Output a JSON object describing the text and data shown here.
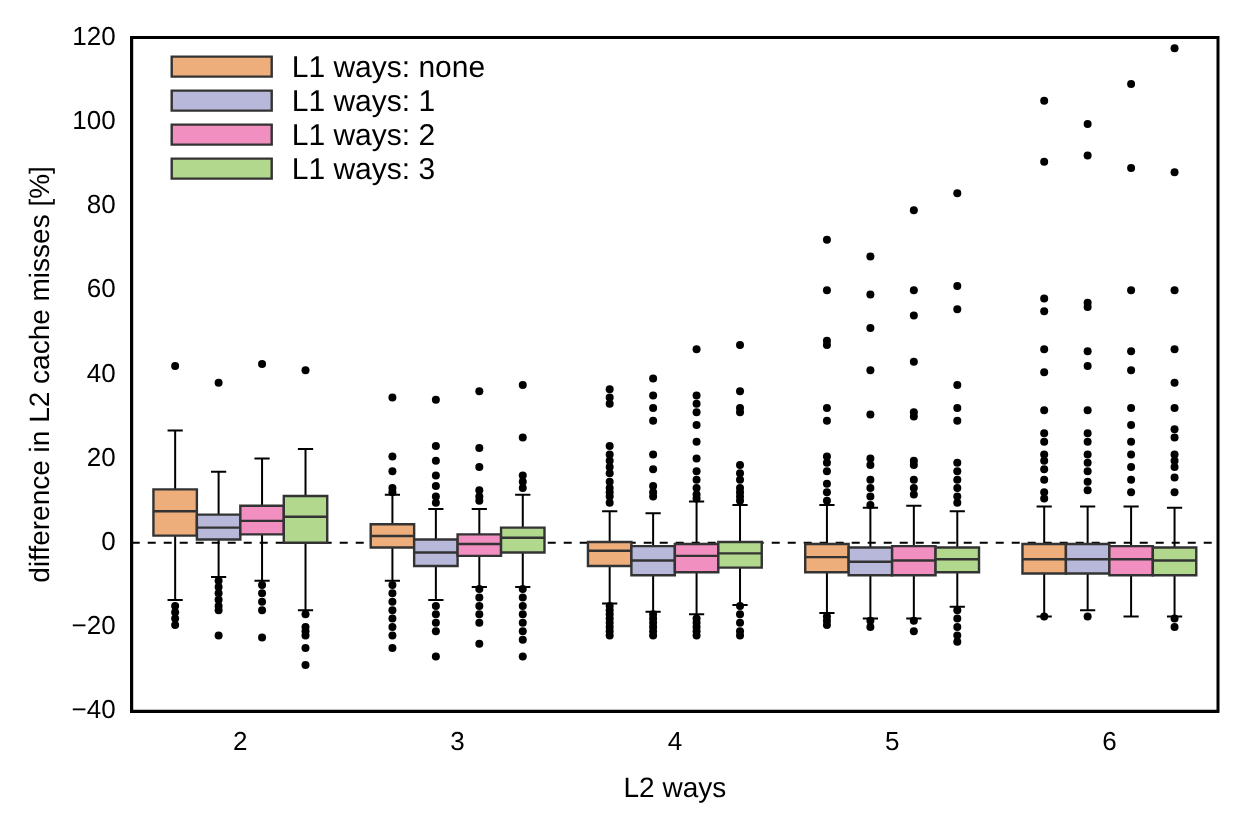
{
  "chart_data": {
    "type": "box",
    "xlabel": "L2 ways",
    "ylabel": "difference in L2 cache misses [%]",
    "categories": [
      "2",
      "3",
      "4",
      "5",
      "6"
    ],
    "ylim": [
      -40,
      120
    ],
    "yticks": [
      {
        "value": -40,
        "label": "−40"
      },
      {
        "value": -20,
        "label": "−20"
      },
      0,
      20,
      40,
      60,
      80,
      100,
      120
    ],
    "grid": false,
    "legend": "top left",
    "ref_lines": [
      {
        "axis": "y",
        "value": 0,
        "color": "#000000",
        "line_style": "dashed"
      }
    ],
    "series": [
      {
        "name": "L1 ways: none",
        "color": "#eeae7c",
        "boxes": [
          {
            "low": -13.6,
            "q1": 1.7,
            "median": 7.5,
            "q3": 12.7,
            "high": 26.7,
            "outliers": [
              42,
              -15,
              -16.5,
              -18,
              -19.5
            ]
          },
          {
            "low": -9,
            "q1": -1.1,
            "median": 1.6,
            "q3": 4.4,
            "high": 11.4,
            "outliers": [
              34.5,
              20.5,
              17,
              13,
              12,
              -10,
              -12,
              -14,
              -16,
              -18,
              -20,
              -22,
              -25
            ]
          },
          {
            "low": -14.4,
            "q1": -5.5,
            "median": -1.9,
            "q3": 0.2,
            "high": 7.5,
            "outliers": [
              36.5,
              34.5,
              33,
              23,
              21,
              19.5,
              18,
              16.5,
              14.5,
              13,
              12,
              11,
              9.5,
              -15,
              -16,
              -17,
              -18,
              -19,
              -20,
              -21,
              -22
            ]
          },
          {
            "low": -16.7,
            "q1": -7,
            "median": -3.4,
            "q3": -0.3,
            "high": 9,
            "outliers": [
              72,
              60,
              48,
              47,
              32,
              29,
              20.5,
              19,
              17,
              14,
              12,
              10,
              -17.5,
              -18.5,
              -19.5
            ]
          },
          {
            "low": -17.5,
            "q1": -7.3,
            "median": -3.9,
            "q3": -0.3,
            "high": 8.6,
            "outliers": [
              105,
              90.5,
              58,
              55,
              46,
              40.5,
              31.5,
              26,
              24,
              21,
              19.5,
              17.5,
              15,
              12,
              10.5,
              -17.5
            ]
          }
        ]
      },
      {
        "name": "L1 ways: 1",
        "color": "#b8b8da",
        "boxes": [
          {
            "low": -8.1,
            "q1": 0.8,
            "median": 3.6,
            "q3": 6.7,
            "high": 16.9,
            "outliers": [
              38,
              -9,
              -10.5,
              -12,
              -13.5,
              -15,
              -16,
              -22
            ]
          },
          {
            "low": -13.6,
            "q1": -5.5,
            "median": -2.3,
            "q3": 0.8,
            "high": 8,
            "outliers": [
              34,
              23,
              19.5,
              16,
              13.5,
              11,
              9.5,
              -15,
              -17,
              -19,
              -21,
              -27
            ]
          },
          {
            "low": -16.4,
            "q1": -7.7,
            "median": -4.2,
            "q3": -0.8,
            "high": 7,
            "outliers": [
              39,
              35,
              32,
              29,
              21,
              17.5,
              13.5,
              12,
              11,
              -17,
              -18,
              -19,
              -20,
              -21,
              -22
            ]
          },
          {
            "low": -18,
            "q1": -7.7,
            "median": -4.5,
            "q3": -1.1,
            "high": 8.3,
            "outliers": [
              68,
              59,
              51,
              41,
              30.5,
              20,
              18.5,
              15,
              13,
              11,
              9,
              -18.5,
              -20
            ]
          },
          {
            "low": -16,
            "q1": -7.3,
            "median": -3.9,
            "q3": -0.3,
            "high": 8.6,
            "outliers": [
              99.5,
              92,
              57,
              56,
              45.5,
              42,
              31.5,
              26,
              24,
              21,
              19,
              17,
              14.5,
              12.5,
              -17.5
            ]
          }
        ]
      },
      {
        "name": "L1 ways: 2",
        "color": "#f08fc0",
        "boxes": [
          {
            "low": -9,
            "q1": 2,
            "median": 5.2,
            "q3": 8.8,
            "high": 20,
            "outliers": [
              42.5,
              -10,
              -12,
              -14,
              -16,
              -22.5
            ]
          },
          {
            "low": -10.5,
            "q1": -3.1,
            "median": -0.3,
            "q3": 2,
            "high": 8,
            "outliers": [
              36,
              22.5,
              18,
              12.5,
              11,
              10,
              -11,
              -13,
              -15,
              -17,
              -19,
              -24
            ]
          },
          {
            "low": -17,
            "q1": -7,
            "median": -3.1,
            "q3": -0.3,
            "high": 9.8,
            "outliers": [
              46,
              35,
              33,
              31,
              28,
              24,
              20,
              17,
              15,
              13,
              11.5,
              10.5,
              -18,
              -19,
              -20,
              -21,
              -22
            ]
          },
          {
            "low": -18,
            "q1": -7.7,
            "median": -4.2,
            "q3": -0.8,
            "high": 8.8,
            "outliers": [
              79,
              60,
              54,
              43,
              31,
              30,
              19.5,
              18.5,
              15,
              13,
              11.5,
              -18.5,
              -21
            ]
          },
          {
            "low": -17.5,
            "q1": -7.7,
            "median": -3.9,
            "q3": -0.8,
            "high": 8.6,
            "outliers": [
              109,
              89,
              60,
              45.5,
              41,
              32,
              28,
              24,
              21,
              18,
              15,
              12
            ]
          }
        ]
      },
      {
        "name": "L1 ways: 3",
        "color": "#b2d88e",
        "boxes": [
          {
            "low": -16,
            "q1": 0,
            "median": 6.2,
            "q3": 11.1,
            "high": 22.3,
            "outliers": [
              41,
              -17,
              -20,
              -21,
              -22,
              -25,
              -29
            ]
          },
          {
            "low": -10.5,
            "q1": -2.3,
            "median": 1.2,
            "q3": 3.6,
            "high": 11.4,
            "outliers": [
              37.5,
              25,
              16,
              14.5,
              13,
              -11,
              -13,
              -15,
              -17,
              -19,
              -21,
              -23,
              -27
            ]
          },
          {
            "low": -14.8,
            "q1": -5.9,
            "median": -2.5,
            "q3": 0.2,
            "high": 9,
            "outliers": [
              47,
              36,
              32,
              31,
              18.5,
              16.5,
              15,
              13,
              12,
              11,
              10,
              -15,
              -17,
              -19,
              -21,
              -22
            ]
          },
          {
            "low": -15.2,
            "q1": -7,
            "median": -3.9,
            "q3": -1.1,
            "high": 7.5,
            "outliers": [
              83,
              61,
              55.5,
              37.5,
              32,
              29,
              19,
              17,
              15,
              13,
              11,
              9.5,
              -16,
              -18,
              -20,
              -22,
              -23.5
            ]
          },
          {
            "low": -17.5,
            "q1": -7.7,
            "median": -4.2,
            "q3": -1.1,
            "high": 8.3,
            "outliers": [
              117.5,
              88,
              60,
              46,
              38,
              32,
              27,
              25,
              21,
              19.5,
              18,
              15.5,
              12,
              -18,
              -20
            ]
          }
        ]
      }
    ]
  }
}
